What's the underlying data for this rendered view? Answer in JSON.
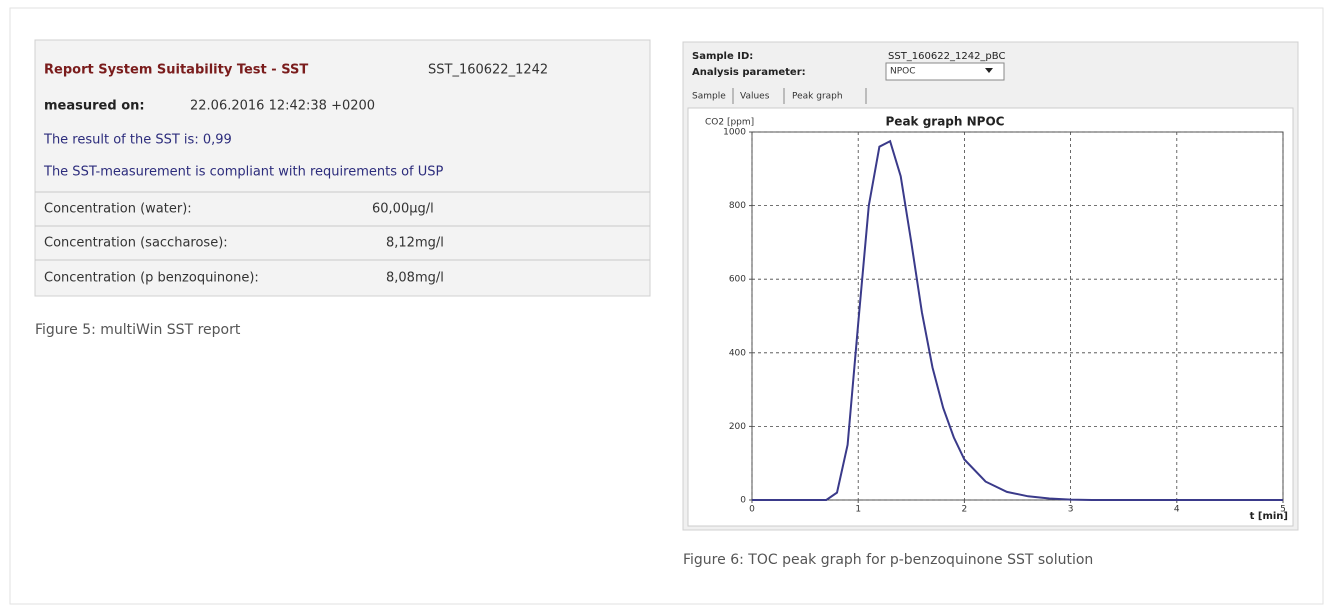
{
  "report": {
    "title": "Report System Suitability Test - SST",
    "sst_id": "SST_160622_1242",
    "measured_label": "measured on:",
    "measured_value": "22.06.2016 12:42:38 +0200",
    "result": "The result of the SST is: 0,99",
    "compliance": "The SST-measurement is compliant with requirements of USP",
    "rows": [
      [
        "Concentration (water):",
        "60,00µg/l"
      ],
      [
        "Concentration (saccharose):",
        "8,12mg/l"
      ],
      [
        "Concentration (p benzoquinone):",
        "8,08mg/l"
      ]
    ],
    "caption": "Figure 5: multiWin SST report"
  },
  "panel": {
    "sample_id_label": "Sample ID:",
    "sample_id_value": "SST_160622_1242_pBC",
    "analysis_label": "Analysis parameter:",
    "analysis_value": "NPOC",
    "tabs": [
      "Sample",
      "Values",
      "Peak graph"
    ],
    "caption": "Figure 6: TOC peak graph for p-benzoquinone SST solution"
  },
  "chart_data": {
    "type": "line",
    "title": "Peak graph NPOC",
    "y_label": "CO2 [ppm]",
    "x_label": "t [min]",
    "xlim": [
      0,
      5
    ],
    "ylim": [
      0,
      1000
    ],
    "xticks": [
      0,
      1,
      2,
      3,
      4,
      5
    ],
    "yticks": [
      0,
      200,
      400,
      600,
      800,
      1000
    ],
    "grid": true,
    "series": [
      {
        "color": "#3a3a8a",
        "x": [
          0,
          0.7,
          0.8,
          0.9,
          1.0,
          1.1,
          1.2,
          1.3,
          1.4,
          1.5,
          1.6,
          1.7,
          1.8,
          1.9,
          2.0,
          2.2,
          2.4,
          2.6,
          2.8,
          3.0,
          3.2,
          5
        ],
        "values": [
          0,
          0,
          20,
          150,
          480,
          800,
          960,
          975,
          880,
          700,
          510,
          360,
          250,
          170,
          110,
          50,
          22,
          10,
          4,
          1,
          0,
          0
        ]
      }
    ]
  }
}
